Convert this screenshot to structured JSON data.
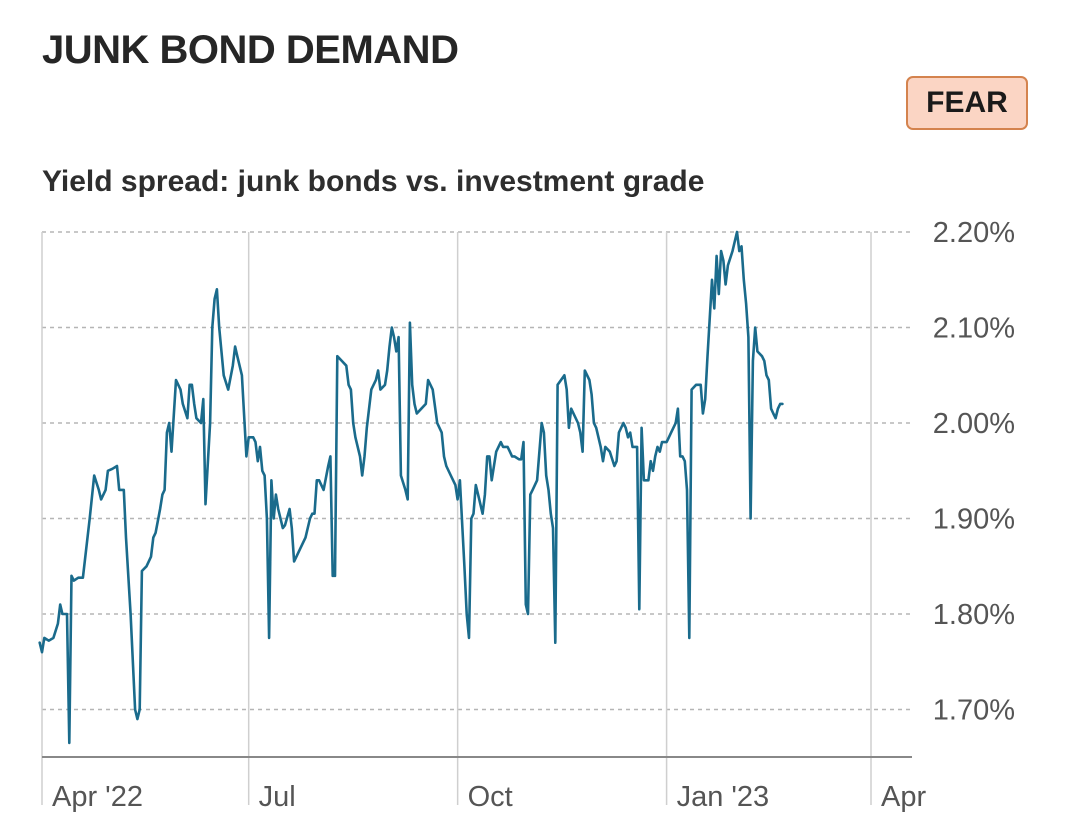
{
  "header": {
    "title": "JUNK BOND DEMAND",
    "status_badge": "FEAR",
    "subtitle": "Yield spread: junk bonds vs. investment grade"
  },
  "colors": {
    "line": "#1a6b8c",
    "badge_bg": "#fbd5c4",
    "badge_border": "#d4834e"
  },
  "chart_data": {
    "type": "line",
    "title": "Yield spread: junk bonds vs. investment grade",
    "ylim": [
      1.65,
      2.2
    ],
    "y_ticks": [
      {
        "value": 2.2,
        "label": "2.20%"
      },
      {
        "value": 2.1,
        "label": "2.10%"
      },
      {
        "value": 2.0,
        "label": "2.00%"
      },
      {
        "value": 1.9,
        "label": "1.90%"
      },
      {
        "value": 1.8,
        "label": "1.80%"
      },
      {
        "value": 1.7,
        "label": "1.70%"
      }
    ],
    "x_ticks": [
      {
        "day": 0,
        "label": "Apr '22"
      },
      {
        "day": 91,
        "label": "Jul"
      },
      {
        "day": 183,
        "label": "Oct"
      },
      {
        "day": 275,
        "label": "Jan '23"
      },
      {
        "day": 365,
        "label": "Apr"
      }
    ],
    "grid": "horizontal dashed, vertical solid at x ticks",
    "series": [
      {
        "points": [
          [
            -1,
            1.77
          ],
          [
            0,
            1.76
          ],
          [
            1,
            1.775
          ],
          [
            3,
            1.772
          ],
          [
            5,
            1.775
          ],
          [
            7,
            1.79
          ],
          [
            8,
            1.81
          ],
          [
            9,
            1.8
          ],
          [
            11,
            1.8
          ],
          [
            12,
            1.665
          ],
          [
            13,
            1.84
          ],
          [
            14,
            1.835
          ],
          [
            16,
            1.838
          ],
          [
            18,
            1.838
          ],
          [
            21,
            1.9
          ],
          [
            23,
            1.945
          ],
          [
            25,
            1.93
          ],
          [
            26,
            1.92
          ],
          [
            28,
            1.93
          ],
          [
            29,
            1.95
          ],
          [
            31,
            1.952
          ],
          [
            33,
            1.955
          ],
          [
            34,
            1.93
          ],
          [
            36,
            1.93
          ],
          [
            37,
            1.88
          ],
          [
            39,
            1.8
          ],
          [
            41,
            1.7
          ],
          [
            42,
            1.69
          ],
          [
            43,
            1.7
          ],
          [
            44,
            1.845
          ],
          [
            46,
            1.85
          ],
          [
            48,
            1.86
          ],
          [
            49,
            1.88
          ],
          [
            50,
            1.885
          ],
          [
            52,
            1.91
          ],
          [
            53,
            1.925
          ],
          [
            54,
            1.93
          ],
          [
            55,
            1.99
          ],
          [
            56,
            2.0
          ],
          [
            57,
            1.97
          ],
          [
            59,
            2.045
          ],
          [
            61,
            2.035
          ],
          [
            62,
            2.02
          ],
          [
            64,
            2.005
          ],
          [
            65,
            2.04
          ],
          [
            66,
            2.04
          ],
          [
            67,
            2.02
          ],
          [
            68,
            2.005
          ],
          [
            70,
            2.0
          ],
          [
            71,
            2.025
          ],
          [
            72,
            1.915
          ],
          [
            74,
            2.0
          ],
          [
            75,
            2.1
          ],
          [
            76,
            2.13
          ],
          [
            77,
            2.14
          ],
          [
            78,
            2.1
          ],
          [
            80,
            2.05
          ],
          [
            82,
            2.035
          ],
          [
            84,
            2.06
          ],
          [
            85,
            2.08
          ],
          [
            86,
            2.07
          ],
          [
            88,
            2.05
          ],
          [
            90,
            1.965
          ],
          [
            91,
            1.985
          ],
          [
            93,
            1.985
          ],
          [
            94,
            1.98
          ],
          [
            95,
            1.96
          ],
          [
            96,
            1.975
          ],
          [
            97,
            1.95
          ],
          [
            98,
            1.945
          ],
          [
            99,
            1.9
          ],
          [
            100,
            1.775
          ],
          [
            101,
            1.94
          ],
          [
            102,
            1.9
          ],
          [
            103,
            1.925
          ],
          [
            104,
            1.91
          ],
          [
            106,
            1.89
          ],
          [
            107,
            1.893
          ],
          [
            109,
            1.91
          ],
          [
            110,
            1.89
          ],
          [
            111,
            1.855
          ],
          [
            112,
            1.86
          ],
          [
            114,
            1.87
          ],
          [
            116,
            1.88
          ],
          [
            118,
            1.9
          ],
          [
            119,
            1.905
          ],
          [
            120,
            1.905
          ],
          [
            121,
            1.94
          ],
          [
            122,
            1.94
          ],
          [
            124,
            1.93
          ],
          [
            126,
            1.955
          ],
          [
            127,
            1.965
          ],
          [
            128,
            1.84
          ],
          [
            129,
            1.84
          ],
          [
            130,
            2.07
          ],
          [
            132,
            2.065
          ],
          [
            134,
            2.06
          ],
          [
            135,
            2.04
          ],
          [
            136,
            2.035
          ],
          [
            137,
            2.0
          ],
          [
            138,
            1.985
          ],
          [
            140,
            1.965
          ],
          [
            141,
            1.945
          ],
          [
            142,
            1.965
          ],
          [
            143,
            1.995
          ],
          [
            145,
            2.035
          ],
          [
            147,
            2.045
          ],
          [
            148,
            2.055
          ],
          [
            149,
            2.035
          ],
          [
            151,
            2.04
          ],
          [
            152,
            2.055
          ],
          [
            153,
            2.08
          ],
          [
            154,
            2.1
          ],
          [
            155,
            2.09
          ],
          [
            156,
            2.075
          ],
          [
            157,
            2.09
          ],
          [
            158,
            1.945
          ],
          [
            160,
            1.93
          ],
          [
            161,
            1.92
          ],
          [
            162,
            2.105
          ],
          [
            163,
            2.04
          ],
          [
            164,
            2.02
          ],
          [
            165,
            2.01
          ],
          [
            167,
            2.015
          ],
          [
            169,
            2.02
          ],
          [
            170,
            2.045
          ],
          [
            172,
            2.035
          ],
          [
            174,
            2.0
          ],
          [
            176,
            1.99
          ],
          [
            177,
            1.965
          ],
          [
            178,
            1.955
          ],
          [
            180,
            1.945
          ],
          [
            182,
            1.935
          ],
          [
            183,
            1.92
          ],
          [
            184,
            1.94
          ],
          [
            186,
            1.85
          ],
          [
            187,
            1.8
          ],
          [
            188,
            1.775
          ],
          [
            189,
            1.9
          ],
          [
            190,
            1.905
          ],
          [
            191,
            1.935
          ],
          [
            192,
            1.925
          ],
          [
            194,
            1.905
          ],
          [
            195,
            1.925
          ],
          [
            196,
            1.965
          ],
          [
            197,
            1.965
          ],
          [
            198,
            1.94
          ],
          [
            200,
            1.97
          ],
          [
            202,
            1.98
          ],
          [
            203,
            1.975
          ],
          [
            205,
            1.975
          ],
          [
            206,
            1.97
          ],
          [
            207,
            1.965
          ],
          [
            208,
            1.965
          ],
          [
            210,
            1.962
          ],
          [
            211,
            1.962
          ],
          [
            212,
            1.98
          ],
          [
            213,
            1.81
          ],
          [
            214,
            1.8
          ],
          [
            215,
            1.925
          ],
          [
            216,
            1.93
          ],
          [
            218,
            1.94
          ],
          [
            220,
            2.0
          ],
          [
            221,
            1.99
          ],
          [
            222,
            1.945
          ],
          [
            223,
            1.93
          ],
          [
            224,
            1.905
          ],
          [
            225,
            1.89
          ],
          [
            226,
            1.77
          ],
          [
            227,
            2.04
          ],
          [
            230,
            2.05
          ],
          [
            231,
            2.035
          ],
          [
            232,
            1.995
          ],
          [
            233,
            2.015
          ],
          [
            234,
            2.01
          ],
          [
            236,
            2.0
          ],
          [
            237,
            1.99
          ],
          [
            238,
            1.97
          ],
          [
            239,
            2.055
          ],
          [
            241,
            2.045
          ],
          [
            242,
            2.03
          ],
          [
            243,
            2.0
          ],
          [
            244,
            1.995
          ],
          [
            246,
            1.975
          ],
          [
            247,
            1.96
          ],
          [
            248,
            1.975
          ],
          [
            250,
            1.97
          ],
          [
            252,
            1.955
          ],
          [
            253,
            1.96
          ],
          [
            254,
            1.99
          ],
          [
            256,
            2.0
          ],
          [
            257,
            1.995
          ],
          [
            258,
            1.985
          ],
          [
            259,
            1.99
          ],
          [
            260,
            1.975
          ],
          [
            261,
            1.975
          ],
          [
            262,
            1.975
          ],
          [
            263,
            1.805
          ],
          [
            264,
            1.995
          ],
          [
            265,
            1.94
          ],
          [
            266,
            1.94
          ],
          [
            267,
            1.94
          ],
          [
            268,
            1.96
          ],
          [
            269,
            1.95
          ],
          [
            270,
            1.965
          ],
          [
            271,
            1.975
          ],
          [
            272,
            1.97
          ],
          [
            273,
            1.98
          ],
          [
            275,
            1.98
          ],
          [
            276,
            1.985
          ],
          [
            277,
            1.99
          ],
          [
            279,
            2.0
          ],
          [
            280,
            2.015
          ],
          [
            281,
            1.965
          ],
          [
            282,
            1.965
          ],
          [
            283,
            1.96
          ],
          [
            284,
            1.93
          ],
          [
            285,
            1.775
          ],
          [
            286,
            2.035
          ],
          [
            288,
            2.04
          ],
          [
            290,
            2.04
          ],
          [
            291,
            2.01
          ],
          [
            292,
            2.025
          ],
          [
            293,
            2.07
          ],
          [
            295,
            2.15
          ],
          [
            296,
            2.12
          ],
          [
            297,
            2.175
          ],
          [
            298,
            2.135
          ],
          [
            299,
            2.18
          ],
          [
            300,
            2.17
          ],
          [
            301,
            2.145
          ],
          [
            302,
            2.165
          ],
          [
            304,
            2.18
          ],
          [
            306,
            2.2
          ],
          [
            307,
            2.18
          ],
          [
            308,
            2.185
          ],
          [
            309,
            2.15
          ],
          [
            310,
            2.125
          ],
          [
            311,
            2.09
          ],
          [
            312,
            1.9
          ],
          [
            313,
            2.065
          ],
          [
            314,
            2.1
          ],
          [
            315,
            2.075
          ],
          [
            317,
            2.07
          ],
          [
            318,
            2.065
          ],
          [
            319,
            2.05
          ],
          [
            320,
            2.045
          ],
          [
            321,
            2.015
          ],
          [
            322,
            2.01
          ],
          [
            323,
            2.005
          ],
          [
            324,
            2.015
          ],
          [
            325,
            2.02
          ],
          [
            326,
            2.02
          ]
        ]
      }
    ]
  }
}
